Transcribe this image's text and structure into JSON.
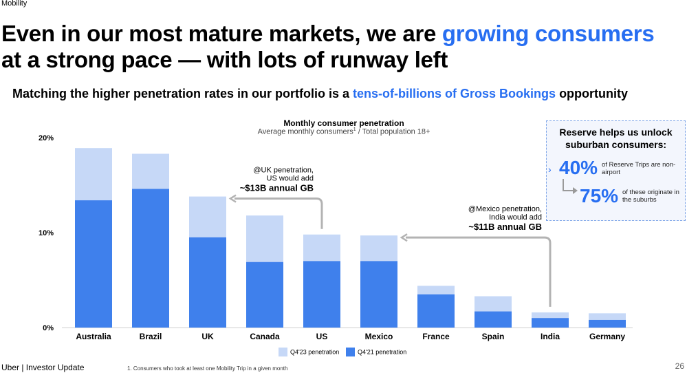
{
  "section": "Mobility",
  "headline": {
    "part1": "Even in our most mature markets, we are ",
    "highlight": "growing consumers",
    "part2": "at a strong pace — with lots of runway left"
  },
  "subhead": {
    "part1": "Matching the higher penetration rates in our portfolio is a ",
    "highlight": "tens-of-billions of Gross Bookings",
    "part2": " opportunity"
  },
  "chart_data": {
    "type": "bar",
    "title": "Monthly consumer penetration",
    "subtitle": "Average monthly consumers",
    "subtitle_sup": "1",
    "subtitle_tail": " / Total population 18+",
    "categories": [
      "Australia",
      "Brazil",
      "UK",
      "Canada",
      "US",
      "Mexico",
      "France",
      "Spain",
      "India",
      "Germany"
    ],
    "series": [
      {
        "name": "Q4'23 penetration",
        "color": "#c6d8f7",
        "values": [
          18.9,
          18.3,
          13.8,
          11.8,
          9.8,
          9.7,
          4.4,
          3.3,
          1.6,
          1.5
        ]
      },
      {
        "name": "Q4'21 penetration",
        "color": "#3f80ec",
        "values": [
          13.4,
          14.6,
          9.5,
          6.9,
          7.0,
          7.0,
          3.5,
          1.7,
          1.0,
          0.8
        ]
      }
    ],
    "yticks": [
      "0%",
      "10%",
      "20%"
    ],
    "ylim": [
      0,
      20
    ],
    "annotations": [
      {
        "lines": [
          "@UK penetration,",
          "US would add"
        ],
        "bold": "~$13B annual GB",
        "from": "US",
        "to": "UK"
      },
      {
        "lines": [
          "@Mexico penetration,",
          "India would add"
        ],
        "bold": "~$11B annual GB",
        "from": "India",
        "to": "Mexico"
      }
    ]
  },
  "callout": {
    "title": "Reserve helps us unlock suburban consumers:",
    "stat1": {
      "value": "40%",
      "text": "of Reserve Trips are non-airport"
    },
    "stat2": {
      "value": "75%",
      "text": "of these originate in the suburbs"
    }
  },
  "footer": {
    "brand": "Uber  |  Investor Update",
    "footnote": "1. Consumers who took at least one Mobility Trip in a given month",
    "page": "26"
  }
}
